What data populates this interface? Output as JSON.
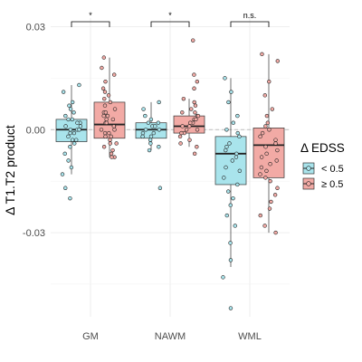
{
  "chart_data": {
    "type": "box",
    "ylabel": "Δ T1.T2 product",
    "yticks": [
      0.03,
      0.0,
      -0.03
    ],
    "ytick_labels": [
      "0.03",
      "0.00",
      "-0.03"
    ],
    "ylim": [
      -0.0545,
      0.0325
    ],
    "reference_line": 0.0,
    "grid": true,
    "legend": {
      "title": "Δ EDSS",
      "position": "right"
    },
    "categories": [
      "GM",
      "NAWM",
      "WML"
    ],
    "series": [
      {
        "name": "< 0.5",
        "color": "#a9e4ec",
        "boxes": [
          {
            "category": "GM",
            "whisker_low": -0.013,
            "q1": -0.0035,
            "median": 0.0,
            "q3": 0.003,
            "whisker_high": 0.013,
            "points": [
              0.013,
              0.011,
              0.008,
              0.007,
              0.006,
              0.005,
              0.004,
              0.003,
              0.003,
              0.002,
              0.002,
              0.001,
              0.001,
              0.0,
              0.0,
              0.0,
              -0.001,
              -0.001,
              -0.002,
              -0.003,
              -0.003,
              -0.004,
              -0.005,
              -0.007,
              -0.009,
              -0.011,
              -0.013,
              -0.017,
              -0.02
            ]
          },
          {
            "category": "NAWM",
            "whisker_low": -0.006,
            "q1": -0.0025,
            "median": 0.0,
            "q3": 0.002,
            "whisker_high": 0.008,
            "points": [
              0.008,
              0.006,
              0.004,
              0.003,
              0.002,
              0.002,
              0.001,
              0.001,
              0.0,
              0.0,
              -0.001,
              -0.001,
              -0.002,
              -0.002,
              -0.003,
              -0.004,
              -0.005,
              -0.006,
              -0.017
            ]
          },
          {
            "category": "WML",
            "whisker_low": -0.04,
            "q1": -0.016,
            "median": -0.007,
            "q3": -0.002,
            "whisker_high": 0.015,
            "points": [
              0.015,
              0.011,
              0.008,
              0.004,
              0.002,
              0.0,
              -0.001,
              -0.002,
              -0.004,
              -0.005,
              -0.006,
              -0.007,
              -0.008,
              -0.009,
              -0.011,
              -0.012,
              -0.014,
              -0.016,
              -0.018,
              -0.02,
              -0.022,
              -0.025,
              -0.028,
              -0.033,
              -0.038,
              -0.043,
              -0.052
            ]
          }
        ]
      },
      {
        "name": "≥ 0.5",
        "color": "#f2aaa5",
        "boxes": [
          {
            "category": "GM",
            "whisker_low": -0.008,
            "q1": -0.0025,
            "median": 0.0015,
            "q3": 0.008,
            "whisker_high": 0.021,
            "points": [
              0.021,
              0.018,
              0.016,
              0.014,
              0.012,
              0.011,
              0.01,
              0.009,
              0.008,
              0.007,
              0.006,
              0.005,
              0.005,
              0.004,
              0.004,
              0.003,
              0.003,
              0.002,
              0.002,
              0.001,
              0.001,
              0.0,
              0.0,
              -0.001,
              -0.001,
              -0.002,
              -0.002,
              -0.003,
              -0.004,
              -0.004,
              -0.005,
              -0.006,
              -0.007,
              -0.008,
              -0.008
            ]
          },
          {
            "category": "NAWM",
            "whisker_low": -0.005,
            "q1": -0.001,
            "median": 0.001,
            "q3": 0.004,
            "whisker_high": 0.009,
            "points": [
              0.026,
              0.016,
              0.014,
              0.012,
              0.009,
              0.008,
              0.007,
              0.006,
              0.005,
              0.005,
              0.004,
              0.004,
              0.003,
              0.003,
              0.002,
              0.002,
              0.001,
              0.001,
              0.0,
              0.0,
              -0.001,
              -0.001,
              -0.002,
              -0.003,
              -0.004,
              -0.005,
              -0.007
            ]
          },
          {
            "category": "WML",
            "whisker_low": -0.03,
            "q1": -0.014,
            "median": -0.0045,
            "q3": 0.0005,
            "whisker_high": 0.022,
            "points": [
              0.022,
              0.02,
              0.014,
              0.01,
              0.006,
              0.004,
              0.002,
              0.001,
              0.0,
              -0.001,
              -0.002,
              -0.003,
              -0.004,
              -0.005,
              -0.006,
              -0.007,
              -0.008,
              -0.009,
              -0.01,
              -0.011,
              -0.012,
              -0.013,
              -0.014,
              -0.015,
              -0.017,
              -0.019,
              -0.021,
              -0.023,
              -0.025,
              -0.028,
              -0.03
            ]
          }
        ]
      }
    ],
    "significance": [
      {
        "category": "GM",
        "label": "*"
      },
      {
        "category": "NAWM",
        "label": "*"
      },
      {
        "category": "WML",
        "label": "n.s."
      }
    ]
  }
}
